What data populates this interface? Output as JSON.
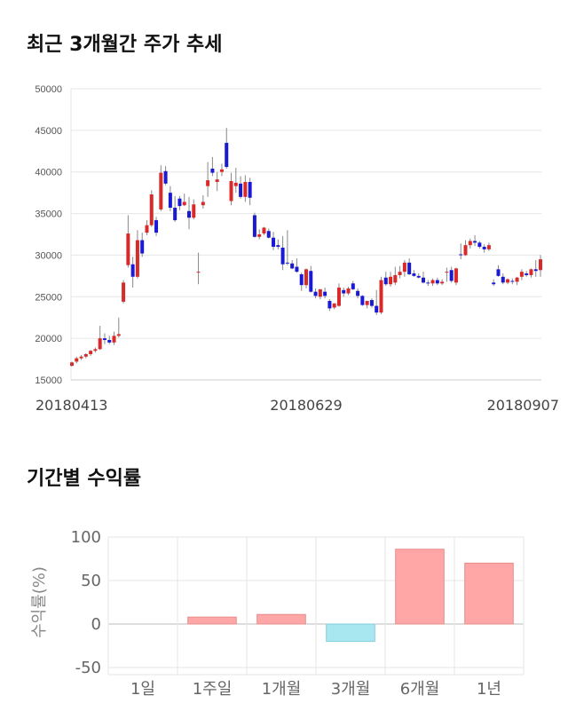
{
  "sections": {
    "price_title": "최근 3개월간 주가 추세",
    "return_title": "기간별 수익률"
  },
  "colors": {
    "up": "#d92a2a",
    "down": "#1a1ad4",
    "grid": "#e6e6e6",
    "bar_pos": "#ffa6a6",
    "bar_neg": "#a8e6f0"
  },
  "chart_data": [
    {
      "type": "candlestick",
      "title": "최근 3개월간 주가 추세",
      "ylim": [
        15000,
        50000
      ],
      "yticks": [
        15000,
        20000,
        25000,
        30000,
        35000,
        40000,
        45000,
        50000
      ],
      "xtick_labels": [
        {
          "index": 0,
          "label": "20180413"
        },
        {
          "index": 50,
          "label": "20180629"
        },
        {
          "index": 100,
          "label": "20180907"
        }
      ],
      "grid": true,
      "candles": [
        [
          16700,
          17200,
          16600,
          17100
        ],
        [
          17200,
          17800,
          17000,
          17600
        ],
        [
          17600,
          18000,
          17400,
          17800
        ],
        [
          17800,
          18200,
          17600,
          18100
        ],
        [
          18100,
          18600,
          17900,
          18500
        ],
        [
          18500,
          18900,
          18300,
          18700
        ],
        [
          18700,
          21500,
          18600,
          20000
        ],
        [
          20000,
          20600,
          19300,
          19800
        ],
        [
          19800,
          20300,
          19300,
          19500
        ],
        [
          19500,
          20800,
          19200,
          20300
        ],
        [
          20300,
          22500,
          20100,
          20500
        ],
        [
          24400,
          27000,
          24200,
          26700
        ],
        [
          28800,
          34800,
          28500,
          32600
        ],
        [
          28900,
          29800,
          26100,
          27400
        ],
        [
          27400,
          33000,
          27200,
          31800
        ],
        [
          31800,
          32700,
          29800,
          30200
        ],
        [
          32700,
          34200,
          32400,
          33600
        ],
        [
          33600,
          37800,
          33400,
          37300
        ],
        [
          34200,
          34600,
          32300,
          32700
        ],
        [
          35500,
          40800,
          35300,
          39900
        ],
        [
          40100,
          40700,
          38400,
          38600
        ],
        [
          37500,
          38300,
          35300,
          35700
        ],
        [
          35700,
          37100,
          34000,
          34200
        ],
        [
          36800,
          37100,
          35400,
          35900
        ],
        [
          36000,
          37400,
          35900,
          36400
        ],
        [
          35300,
          37000,
          33100,
          34500
        ],
        [
          34500,
          36700,
          34300,
          36100
        ],
        [
          28000,
          30300,
          26500,
          28000
        ],
        [
          36000,
          37200,
          35600,
          36400
        ],
        [
          38300,
          41200,
          37000,
          39000
        ],
        [
          40400,
          41800,
          39500,
          39900
        ],
        [
          38800,
          40000,
          37700,
          39100
        ],
        [
          40000,
          41000,
          39500,
          40300
        ],
        [
          43500,
          45300,
          40400,
          40600
        ],
        [
          36500,
          39900,
          36000,
          38900
        ],
        [
          38300,
          40500,
          37500,
          38700
        ],
        [
          38600,
          39500,
          36800,
          37000
        ],
        [
          37000,
          39600,
          36400,
          38800
        ],
        [
          38800,
          39300,
          36000,
          36900
        ],
        [
          34800,
          35100,
          32100,
          32200
        ],
        [
          32200,
          33100,
          31900,
          32500
        ],
        [
          32600,
          33400,
          32400,
          33300
        ],
        [
          32900,
          33200,
          32000,
          32100
        ],
        [
          32100,
          32800,
          30600,
          31000
        ],
        [
          31200,
          31900,
          30700,
          31000
        ],
        [
          30900,
          32300,
          28200,
          28900
        ],
        [
          29100,
          33000,
          28800,
          29000
        ],
        [
          29000,
          29400,
          28300,
          28400
        ],
        [
          28600,
          29600,
          27900,
          28000
        ],
        [
          27700,
          27900,
          25700,
          26400
        ],
        [
          26400,
          28400,
          26000,
          28300
        ],
        [
          28100,
          28700,
          25500,
          25600
        ],
        [
          25600,
          26000,
          24800,
          25100
        ],
        [
          25000,
          25900,
          24700,
          25900
        ],
        [
          25600,
          26100,
          24800,
          25100
        ],
        [
          24500,
          24700,
          23300,
          23600
        ],
        [
          23700,
          24200,
          23500,
          24200
        ],
        [
          23900,
          26600,
          23800,
          26100
        ],
        [
          25800,
          26100,
          25000,
          25400
        ],
        [
          25400,
          26200,
          25200,
          26000
        ],
        [
          26600,
          26900,
          25800,
          25900
        ],
        [
          25700,
          26000,
          24800,
          25100
        ],
        [
          25100,
          25200,
          23900,
          24000
        ],
        [
          24000,
          24500,
          23600,
          24500
        ],
        [
          24600,
          24800,
          23700,
          23900
        ],
        [
          23900,
          25800,
          22800,
          23100
        ],
        [
          23100,
          27400,
          22900,
          27000
        ],
        [
          27300,
          28000,
          26300,
          26500
        ],
        [
          26500,
          28000,
          26200,
          27400
        ],
        [
          26700,
          28600,
          26400,
          27600
        ],
        [
          27600,
          28700,
          27200,
          28000
        ],
        [
          28000,
          29400,
          27400,
          29100
        ],
        [
          29100,
          29600,
          27600,
          27700
        ],
        [
          27800,
          28200,
          27400,
          27500
        ],
        [
          27500,
          27800,
          27200,
          27300
        ],
        [
          27300,
          28000,
          26600,
          26700
        ],
        [
          26700,
          27000,
          26300,
          26600
        ],
        [
          26600,
          27200,
          26300,
          27000
        ],
        [
          27000,
          27300,
          26400,
          26600
        ],
        [
          26600,
          27100,
          26400,
          26800
        ],
        [
          27900,
          28500,
          26800,
          28000
        ],
        [
          28200,
          28600,
          26700,
          26900
        ],
        [
          26700,
          28500,
          26400,
          28400
        ],
        [
          30100,
          31400,
          29500,
          30000
        ],
        [
          30000,
          31800,
          29900,
          31200
        ],
        [
          31200,
          32000,
          30800,
          31700
        ],
        [
          31700,
          32400,
          31100,
          31500
        ],
        [
          31500,
          31700,
          30800,
          31000
        ],
        [
          31000,
          31300,
          30300,
          30700
        ],
        [
          30700,
          31500,
          30500,
          31200
        ],
        [
          26700,
          27100,
          26300,
          26500
        ],
        [
          28300,
          28800,
          27400,
          27500
        ],
        [
          27400,
          27800,
          26500,
          26700
        ],
        [
          26700,
          27200,
          26500,
          27100
        ],
        [
          26900,
          27200,
          26500,
          26800
        ],
        [
          26800,
          27400,
          26400,
          27300
        ],
        [
          27400,
          28300,
          27000,
          28000
        ],
        [
          27800,
          28100,
          27400,
          27600
        ],
        [
          27600,
          28400,
          27300,
          28300
        ],
        [
          28300,
          29400,
          27400,
          28100
        ],
        [
          28200,
          30000,
          27400,
          29500
        ]
      ]
    },
    {
      "type": "bar",
      "title": "기간별 수익률",
      "ylabel": "수익률(%)",
      "ylim": [
        -50,
        100
      ],
      "yticks": [
        -50,
        0,
        50,
        100
      ],
      "grid": true,
      "categories": [
        "1일",
        "1주일",
        "1개월",
        "3개월",
        "6개월",
        "1년"
      ],
      "values": [
        0,
        8,
        11,
        -20,
        86,
        70
      ]
    }
  ]
}
